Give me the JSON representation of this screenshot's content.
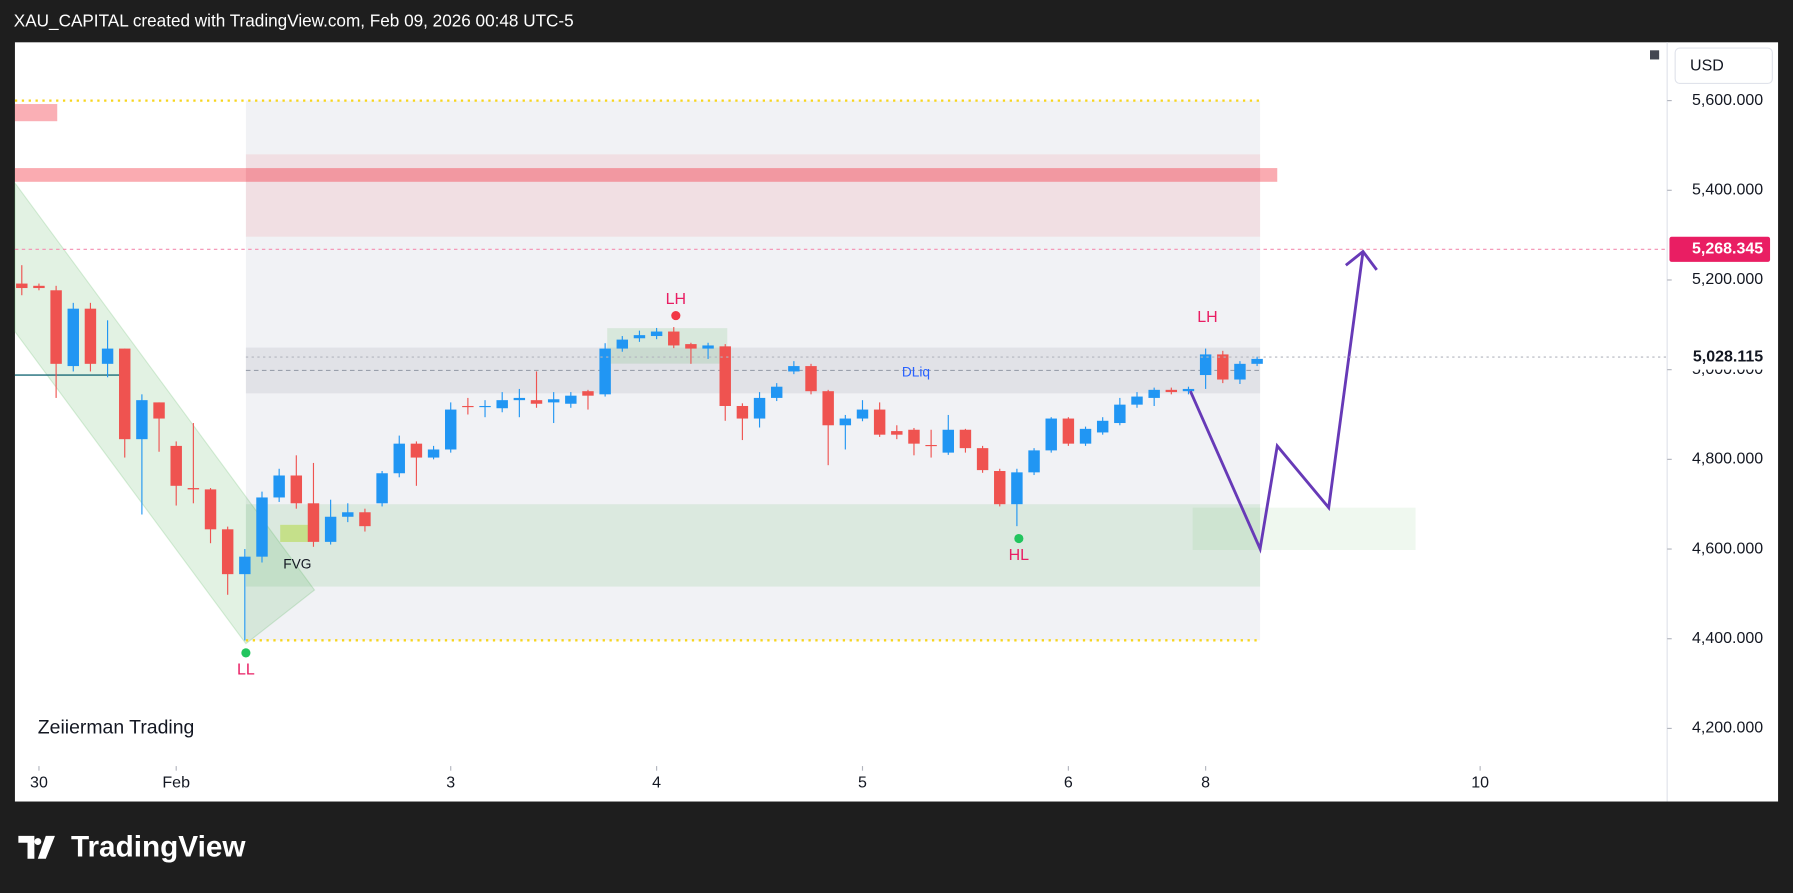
{
  "header": {
    "title": "XAU_CAPITAL created with TradingView.com, Feb 09, 2026 00:48 UTC-5"
  },
  "chart_data": {
    "type": "candlestick",
    "currency": "USD",
    "up_color": "#2196f3",
    "down_color": "#ef5350",
    "candles": [
      [
        5192,
        5233,
        5166,
        5182
      ],
      [
        5187,
        5192,
        5177,
        5182
      ],
      [
        5177,
        5187,
        4937,
        5013
      ],
      [
        5008,
        5149,
        4996,
        5136
      ],
      [
        5136,
        5149,
        4996,
        5013
      ],
      [
        5013,
        5110,
        4983,
        5047
      ],
      [
        5047,
        5047,
        4804,
        4845
      ],
      [
        4845,
        4945,
        4677,
        4932
      ],
      [
        4927,
        4927,
        4817,
        4891
      ],
      [
        4830,
        4840,
        4697,
        4741
      ],
      [
        4736,
        4881,
        4702,
        4733
      ],
      [
        4733,
        4736,
        4613,
        4644
      ],
      [
        4644,
        4650,
        4498,
        4544
      ],
      [
        4544,
        4600,
        4396,
        4583
      ],
      [
        4583,
        4728,
        4570,
        4715
      ],
      [
        4715,
        4779,
        4705,
        4764
      ],
      [
        4764,
        4809,
        4690,
        4702
      ],
      [
        4702,
        4792,
        4605,
        4616
      ],
      [
        4616,
        4710,
        4610,
        4672
      ],
      [
        4672,
        4702,
        4660,
        4682
      ],
      [
        4682,
        4690,
        4639,
        4651
      ],
      [
        4702,
        4774,
        4695,
        4769
      ],
      [
        4769,
        4853,
        4760,
        4835
      ],
      [
        4835,
        4840,
        4741,
        4804
      ],
      [
        4804,
        4830,
        4800,
        4822
      ],
      [
        4822,
        4927,
        4815,
        4911
      ],
      [
        4919,
        4937,
        4900,
        4917
      ],
      [
        4917,
        4932,
        4894,
        4919
      ],
      [
        4914,
        4950,
        4905,
        4932
      ],
      [
        4932,
        4957,
        4894,
        4937
      ],
      [
        4932,
        4996,
        4915,
        4924
      ],
      [
        4927,
        4950,
        4881,
        4934
      ],
      [
        4924,
        4950,
        4915,
        4942
      ],
      [
        4952,
        4955,
        4911,
        4942
      ],
      [
        4945,
        5059,
        4940,
        5047
      ],
      [
        5047,
        5075,
        5040,
        5067
      ],
      [
        5070,
        5087,
        5062,
        5077
      ],
      [
        5075,
        5093,
        5068,
        5085
      ],
      [
        5085,
        5095,
        5048,
        5054
      ],
      [
        5057,
        5060,
        5013,
        5047
      ],
      [
        5047,
        5060,
        5024,
        5054
      ],
      [
        5052,
        5057,
        4886,
        4919
      ],
      [
        4919,
        4925,
        4843,
        4891
      ],
      [
        4891,
        4950,
        4871,
        4937
      ],
      [
        4937,
        4970,
        4930,
        4962
      ],
      [
        4996,
        5019,
        4990,
        5008
      ],
      [
        5008,
        5013,
        4945,
        4952
      ],
      [
        4952,
        4955,
        4787,
        4876
      ],
      [
        4876,
        4899,
        4822,
        4891
      ],
      [
        4891,
        4932,
        4885,
        4911
      ],
      [
        4911,
        4927,
        4850,
        4855
      ],
      [
        4863,
        4876,
        4845,
        4855
      ],
      [
        4866,
        4870,
        4809,
        4835
      ],
      [
        4832,
        4866,
        4804,
        4830
      ],
      [
        4815,
        4899,
        4810,
        4866
      ],
      [
        4866,
        4868,
        4815,
        4825
      ],
      [
        4825,
        4830,
        4770,
        4776
      ],
      [
        4774,
        4779,
        4695,
        4700
      ],
      [
        4700,
        4779,
        4651,
        4771
      ],
      [
        4771,
        4825,
        4765,
        4820
      ],
      [
        4820,
        4894,
        4815,
        4891
      ],
      [
        4891,
        4894,
        4830,
        4835
      ],
      [
        4835,
        4873,
        4830,
        4868
      ],
      [
        4860,
        4894,
        4855,
        4886
      ],
      [
        4881,
        4937,
        4876,
        4922
      ],
      [
        4922,
        4950,
        4915,
        4940
      ],
      [
        4937,
        4960,
        4919,
        4955
      ],
      [
        4955,
        4960,
        4945,
        4950
      ],
      [
        4952,
        4962,
        4945,
        4957
      ],
      [
        4988,
        5047,
        4957,
        5034
      ],
      [
        5034,
        5042,
        4970,
        4978
      ],
      [
        4978,
        5019,
        4968,
        5013
      ],
      [
        5013,
        5029,
        5008,
        5024
      ]
    ],
    "xlim": [
      -0.4,
      95.9
    ],
    "xticks": [
      {
        "value": 1,
        "label": "30"
      },
      {
        "value": 9,
        "label": "Feb"
      },
      {
        "value": 25,
        "label": "3"
      },
      {
        "value": 37,
        "label": "4"
      },
      {
        "value": 49,
        "label": "5"
      },
      {
        "value": 61,
        "label": "6"
      },
      {
        "value": 69,
        "label": "8"
      },
      {
        "value": 85,
        "label": "10"
      }
    ],
    "ylim": [
      4116,
      5730
    ],
    "yticks": [
      {
        "value": 4200,
        "label": "4,200.000"
      },
      {
        "value": 4400,
        "label": "4,400.000"
      },
      {
        "value": 4600,
        "label": "4,600.000"
      },
      {
        "value": 4800,
        "label": "4,800.000"
      },
      {
        "value": 5000,
        "label": "5,000.000"
      },
      {
        "value": 5200,
        "label": "5,200.000"
      },
      {
        "value": 5400,
        "label": "5,400.000"
      },
      {
        "value": 5600,
        "label": "5,600.000"
      }
    ],
    "current_price": {
      "value": 5268.345,
      "label": "5,268.345"
    },
    "last_price": {
      "value": 5028.115,
      "label": "5,028.115"
    },
    "annotations": [
      "LH",
      "LH",
      "HL",
      "LL",
      "FVG",
      "DLiq"
    ],
    "watermark": "Zeiierman Trading"
  },
  "footer": {
    "brand": "TradingView"
  }
}
